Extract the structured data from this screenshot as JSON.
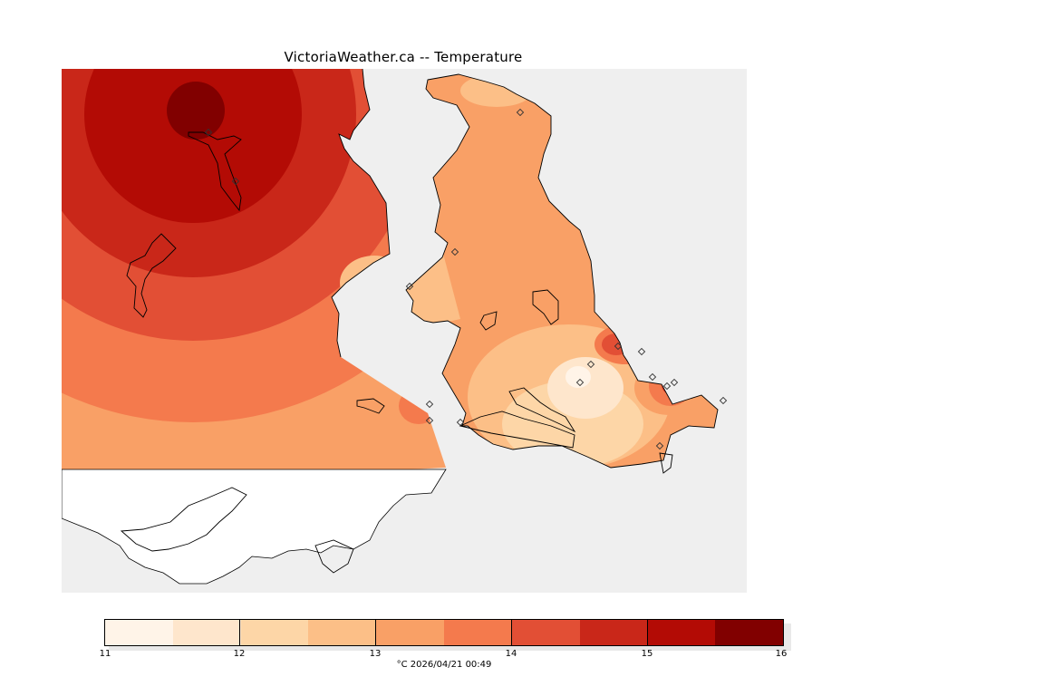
{
  "title": "VictoriaWeather.ca -- Temperature",
  "colorbar": {
    "tick_labels": [
      "11",
      "12",
      "13",
      "14",
      "15",
      "16"
    ],
    "caption": "°C  2026/04/21 00:49",
    "colors": [
      "#fff4e8",
      "#fee6cc",
      "#fdd6a7",
      "#fcbf87",
      "#f9a066",
      "#f47a4d",
      "#e24f35",
      "#c92719",
      "#b30b05",
      "#810000"
    ]
  },
  "map": {
    "land_unsampled_color": "#ffffff",
    "water_color": "#efefef",
    "station_icon": "diamond-station-icon"
  }
}
